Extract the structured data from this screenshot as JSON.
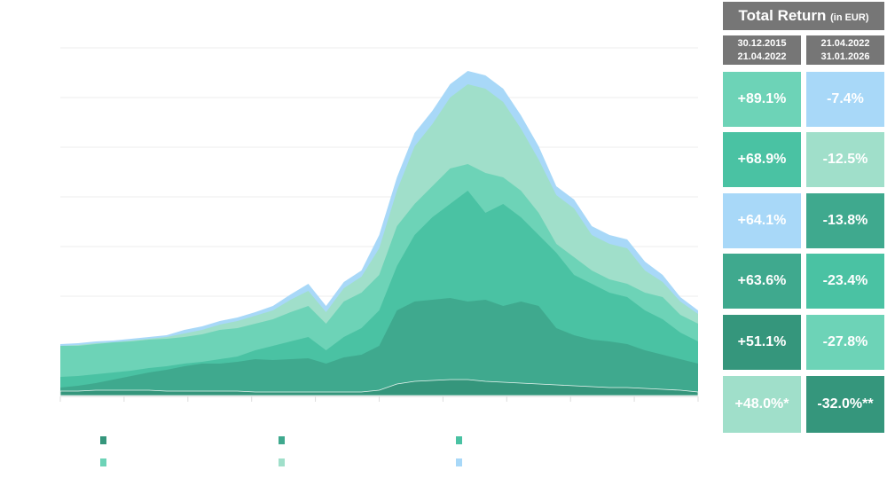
{
  "chart_data": {
    "type": "area",
    "stacked": true,
    "values_are_cumulative": true,
    "title": "",
    "xlabel": "",
    "ylabel": "",
    "ylim": [
      0,
      400
    ],
    "grid": true,
    "x": [
      0,
      1,
      2,
      3,
      4,
      5,
      6,
      7,
      8,
      9,
      10,
      11,
      12,
      13,
      14,
      15,
      16,
      17,
      18,
      19,
      20,
      21,
      22,
      23,
      24,
      25,
      26,
      27,
      28,
      29,
      30,
      31,
      32,
      33,
      34,
      35,
      36
    ],
    "series": [
      {
        "name": "",
        "color": "#35967c",
        "values": [
          5,
          5,
          6,
          6,
          6,
          6,
          5,
          5,
          5,
          5,
          5,
          4,
          4,
          4,
          4,
          4,
          4,
          4,
          6,
          13,
          16,
          17,
          18,
          18,
          16,
          15,
          14,
          13,
          12,
          11,
          10,
          9,
          9,
          8,
          7,
          6,
          4
        ]
      },
      {
        "name": "",
        "color": "#3fa98e",
        "values": [
          9,
          11,
          14,
          18,
          22,
          26,
          29,
          33,
          36,
          36,
          38,
          41,
          40,
          41,
          42,
          36,
          43,
          46,
          56,
          96,
          106,
          108,
          110,
          106,
          108,
          101,
          106,
          101,
          76,
          68,
          63,
          61,
          58,
          51,
          46,
          41,
          36
        ]
      },
      {
        "name": "",
        "color": "#4ac2a3",
        "values": [
          21,
          22,
          24,
          26,
          28,
          31,
          33,
          36,
          38,
          41,
          44,
          51,
          56,
          61,
          66,
          51,
          66,
          76,
          96,
          146,
          181,
          201,
          216,
          231,
          206,
          216,
          201,
          181,
          161,
          136,
          126,
          116,
          111,
          96,
          86,
          71,
          61
        ]
      },
      {
        "name": "",
        "color": "#6dd3b7",
        "values": [
          56,
          56,
          58,
          60,
          61,
          63,
          64,
          66,
          69,
          74,
          76,
          81,
          86,
          94,
          101,
          81,
          106,
          116,
          136,
          191,
          216,
          236,
          256,
          261,
          251,
          246,
          231,
          206,
          171,
          156,
          141,
          131,
          126,
          116,
          111,
          91,
          81
        ]
      },
      {
        "name": "",
        "color": "#a0dfca",
        "values": [
          56,
          57,
          59,
          60,
          62,
          64,
          66,
          70,
          74,
          80,
          84,
          90,
          96,
          108,
          118,
          94,
          121,
          134,
          166,
          231,
          281,
          306,
          336,
          351,
          346,
          331,
          301,
          266,
          226,
          211,
          181,
          171,
          166,
          141,
          128,
          106,
          92
        ]
      },
      {
        "name": "",
        "color": "#a8d8f8",
        "values": [
          58,
          59,
          61,
          62,
          64,
          66,
          68,
          74,
          78,
          84,
          88,
          94,
          101,
          114,
          126,
          101,
          128,
          141,
          181,
          246,
          296,
          321,
          351,
          366,
          361,
          346,
          316,
          281,
          236,
          221,
          191,
          181,
          176,
          151,
          136,
          111,
          96
        ]
      }
    ]
  },
  "table": {
    "title": "Total Return",
    "title_suffix": "(in EUR)",
    "col1_header": [
      "30.12.2015",
      "21.04.2022"
    ],
    "col2_header": [
      "21.04.2022",
      "31.01.2026"
    ],
    "rows": [
      {
        "a": "+89.1%",
        "ac": "#6dd3b7",
        "b": "-7.4%",
        "bc": "#a8d8f8"
      },
      {
        "a": "+68.9%",
        "ac": "#4ac2a3",
        "b": "-12.5%",
        "bc": "#a0dfca"
      },
      {
        "a": "+64.1%",
        "ac": "#a8d8f8",
        "b": "-13.8%",
        "bc": "#3fa98e"
      },
      {
        "a": "+63.6%",
        "ac": "#3fa98e",
        "b": "-23.4%",
        "bc": "#4ac2a3"
      },
      {
        "a": "+51.1%",
        "ac": "#35967c",
        "b": "-27.8%",
        "bc": "#6dd3b7"
      },
      {
        "a": "+48.0%*",
        "ac": "#a0dfca",
        "b": "-32.0%**",
        "bc": "#35967c"
      }
    ]
  }
}
